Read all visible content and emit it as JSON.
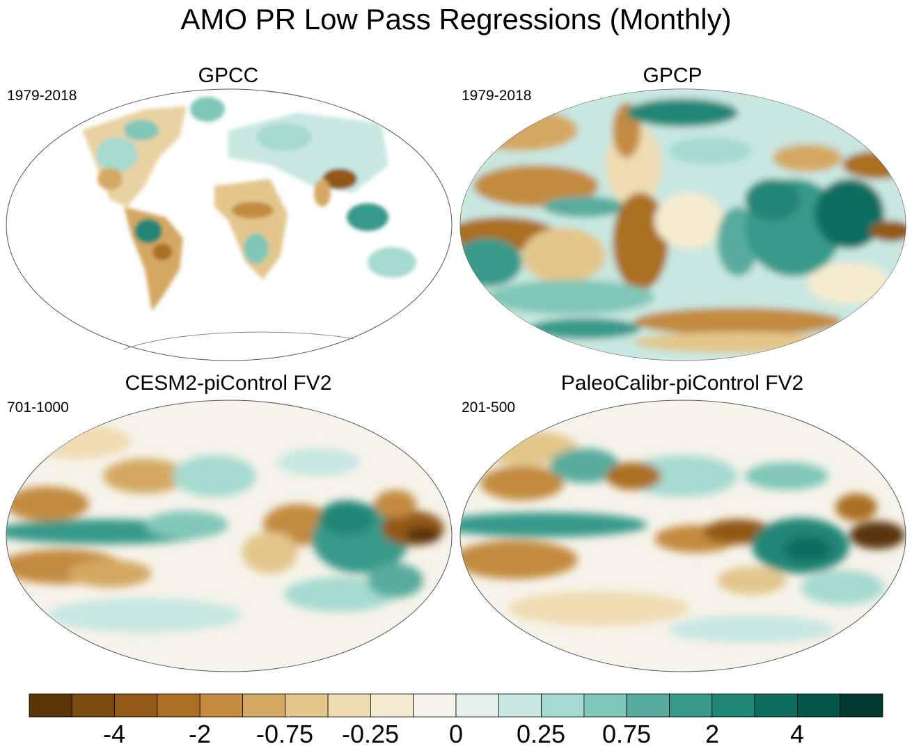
{
  "title": "AMO PR Low Pass Regressions (Monthly)",
  "panels": [
    {
      "name": "GPCC",
      "period": "1979-2018",
      "coverage": "land-only"
    },
    {
      "name": "GPCP",
      "period": "1979-2018",
      "coverage": "global"
    },
    {
      "name": "CESM2-piControl FV2",
      "period": "701-1000",
      "coverage": "global"
    },
    {
      "name": "PaleoCalibr-piControl FV2",
      "period": "201-500",
      "coverage": "global"
    }
  ],
  "colorbar": {
    "labels": [
      "-4",
      "-2",
      "-0.75",
      "-0.25",
      "0",
      "0.25",
      "0.75",
      "2",
      "4"
    ],
    "colors": [
      "#5a3508",
      "#7b4a0e",
      "#935916",
      "#ab6f24",
      "#c38b3f",
      "#d4a862",
      "#e2c68b",
      "#efdcb2",
      "#f5ebcf",
      "#f6f3ea",
      "#e4f1ee",
      "#c8e7e1",
      "#a6dad0",
      "#80c7b8",
      "#58ac9d",
      "#389a8a",
      "#208676",
      "#0d6e60",
      "#03574a",
      "#013a2f"
    ]
  }
}
